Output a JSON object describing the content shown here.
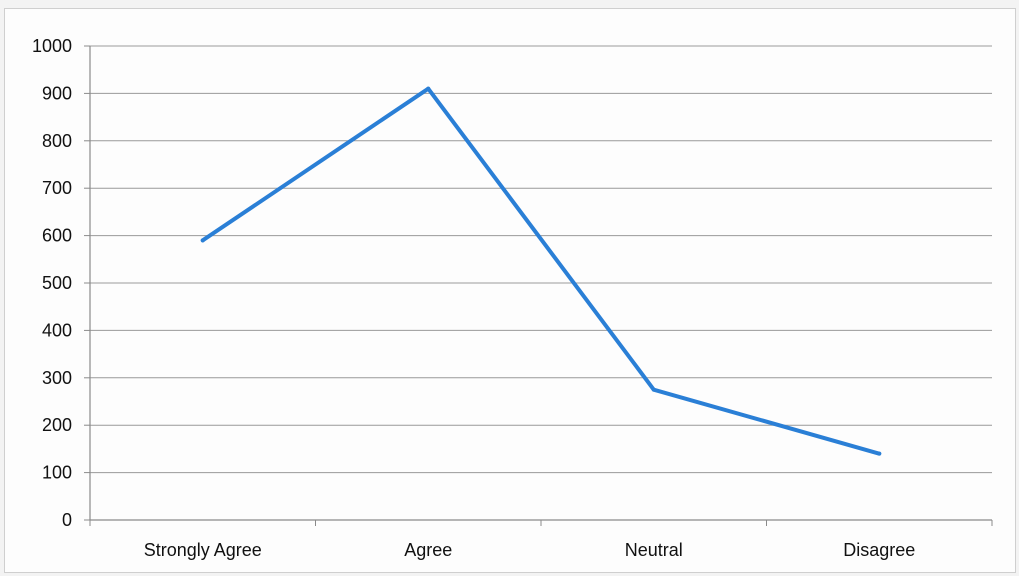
{
  "chart_data": {
    "type": "line",
    "title": "",
    "xlabel": "",
    "ylabel": "",
    "categories": [
      "Strongly Agree",
      "Agree",
      "Neutral",
      "Disagree"
    ],
    "series": [
      {
        "values": [
          590,
          910,
          275,
          140
        ],
        "color": "#2a7fd6"
      }
    ],
    "ylim": [
      0,
      1000
    ],
    "y_ticks": [
      0,
      100,
      200,
      300,
      400,
      500,
      600,
      700,
      800,
      900,
      1000
    ],
    "grid": true,
    "legend": "none"
  }
}
